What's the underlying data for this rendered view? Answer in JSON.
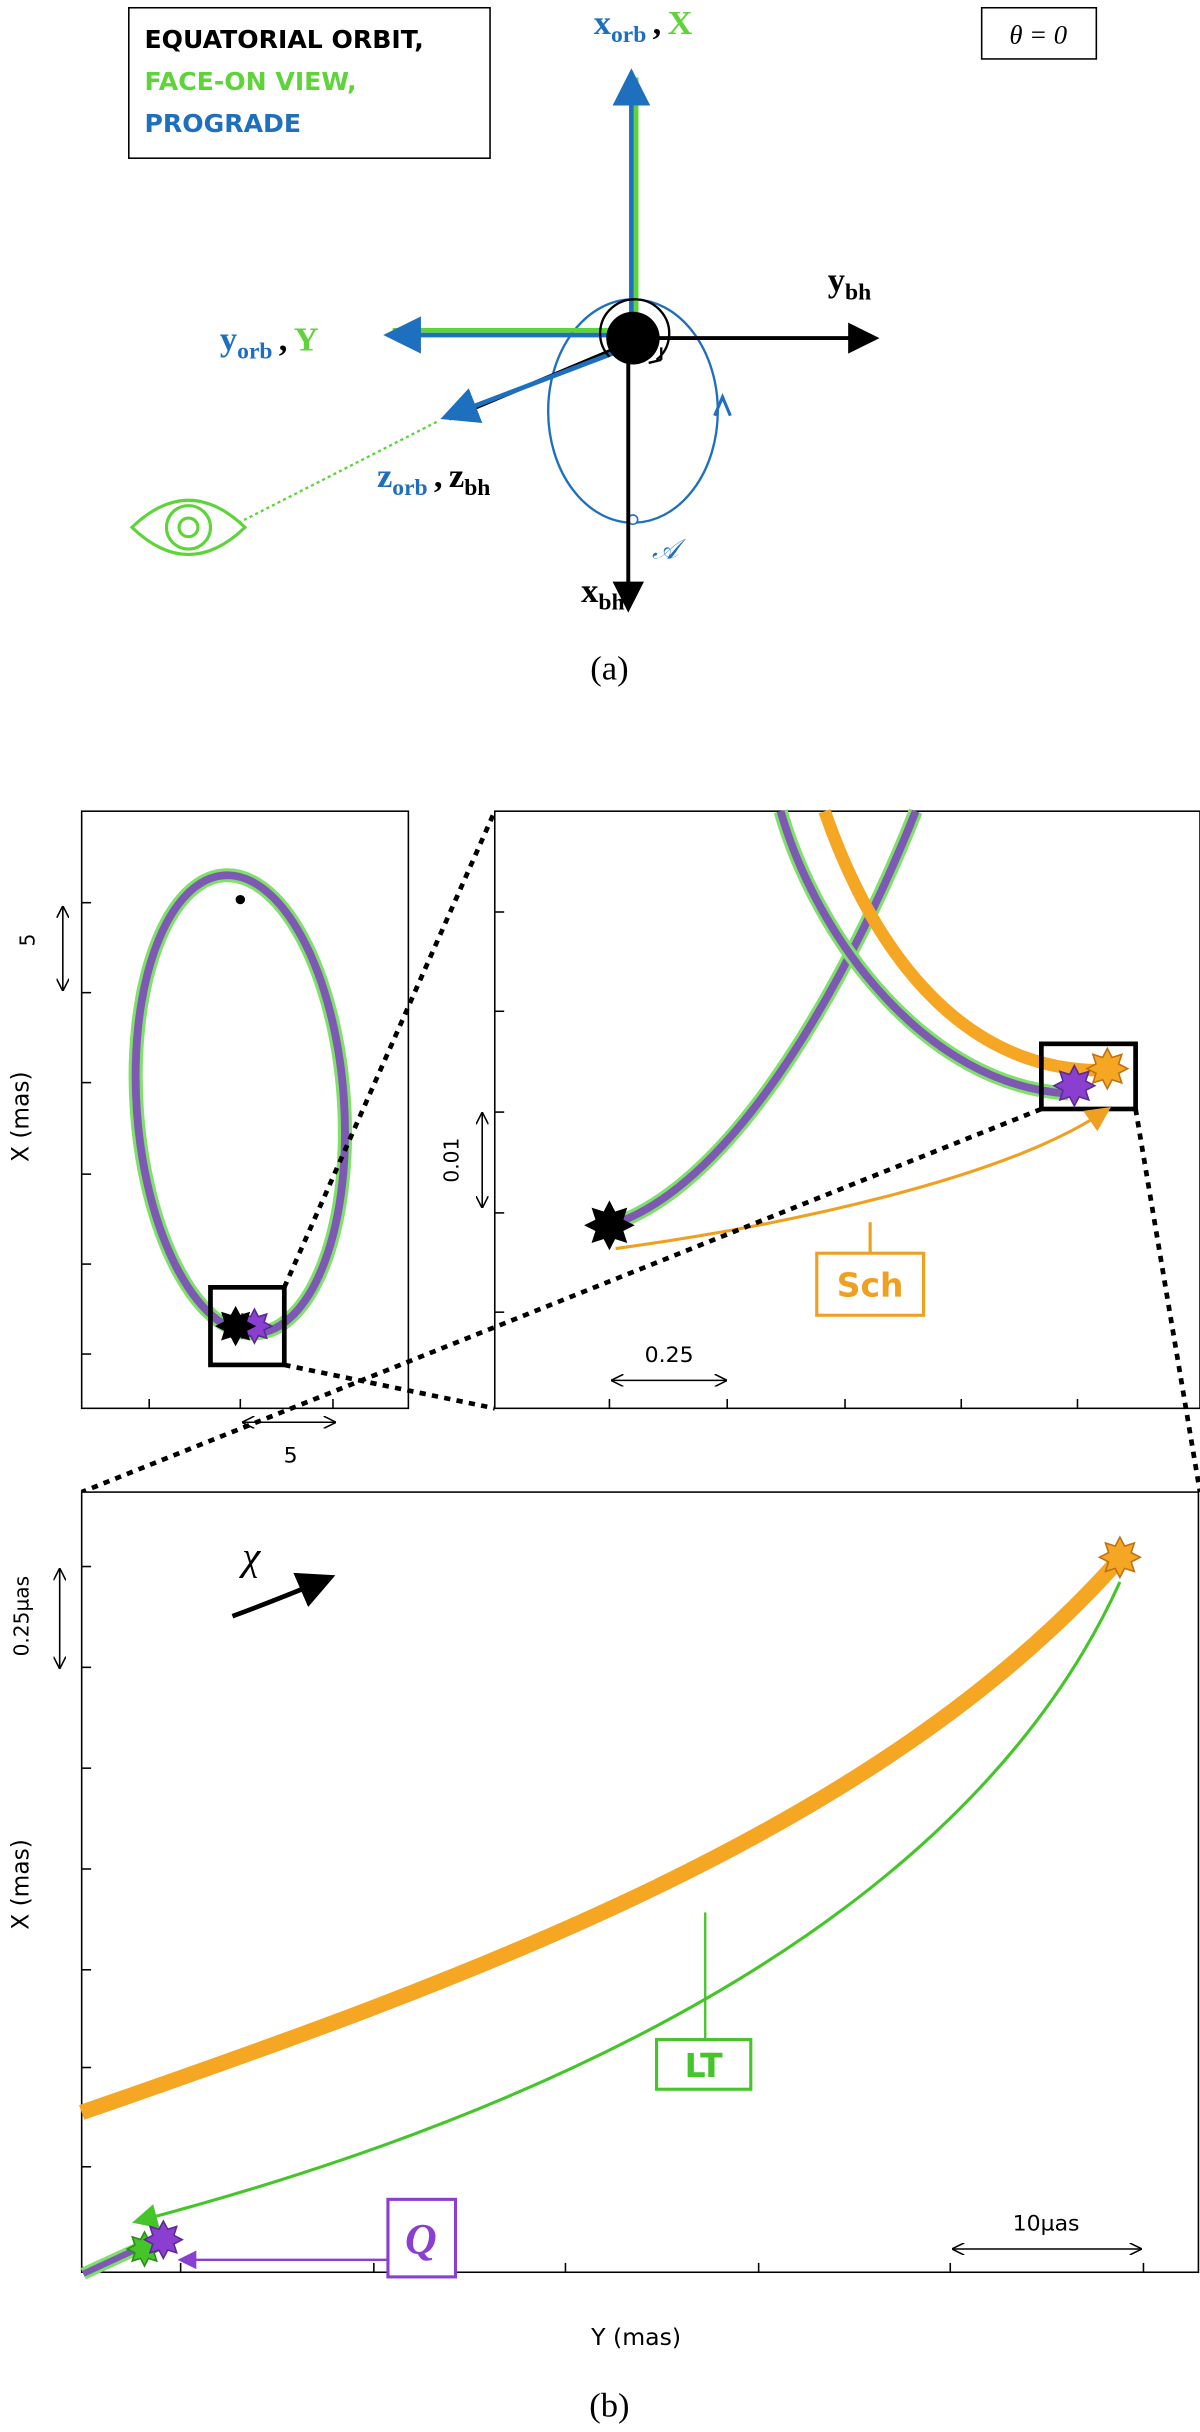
{
  "panel_a": {
    "legend_lines": [
      "EQUATORIAL ORBIT,",
      "FACE-ON VIEW,",
      "PROGRADE"
    ],
    "angle_label": "θ = 0",
    "axis_labels": [
      [
        "x",
        "orb",
        ",",
        "X"
      ],
      [
        "y",
        "bh"
      ],
      [
        "y",
        "orb",
        ",",
        "Y"
      ],
      [
        "z",
        "orb",
        ",",
        "z",
        "bh"
      ],
      [
        "x",
        "bh"
      ]
    ],
    "orbit_point": "𝒜",
    "caption": "(a)"
  },
  "panel_b": {
    "overview": {
      "y_label": "X (mas)",
      "scale_y": "5",
      "scale_x": "5"
    },
    "zoom": {
      "scale_y": "0.01",
      "scale_x": "0.25",
      "sch_label": "Sch"
    },
    "detail": {
      "y_label": "X (mas)",
      "x_label": "Y (mas)",
      "scale_y": "0.25µas",
      "scale_x": "10µas",
      "chi_label": "χ",
      "lt_label": "LT",
      "q_label": "Q"
    },
    "caption": "(b)"
  }
}
